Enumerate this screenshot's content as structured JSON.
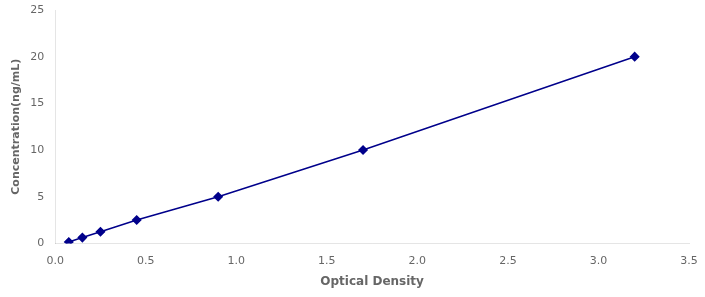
{
  "chart_data": {
    "type": "line",
    "xlabel": "Optical Density",
    "ylabel": "Concentration(ng/mL)",
    "x": [
      0.075,
      0.15,
      0.25,
      0.45,
      0.9,
      1.7,
      3.2
    ],
    "values": [
      0.156,
      0.625,
      1.25,
      2.5,
      5.0,
      10.0,
      20.0
    ],
    "color": "#00008B",
    "marker": "diamond",
    "line_style": "solid",
    "xlim": [
      0,
      3.5
    ],
    "ylim": [
      0,
      25
    ],
    "xticks": [
      {
        "value": 0,
        "label": "0.0"
      },
      0.5,
      {
        "value": 1,
        "label": "1.0"
      },
      1.5,
      {
        "value": 2,
        "label": "2.0"
      },
      2.5,
      {
        "value": 3,
        "label": "3.0"
      },
      3.5
    ],
    "yticks": [
      0,
      5,
      10,
      15,
      20,
      25
    ],
    "grid": false
  }
}
